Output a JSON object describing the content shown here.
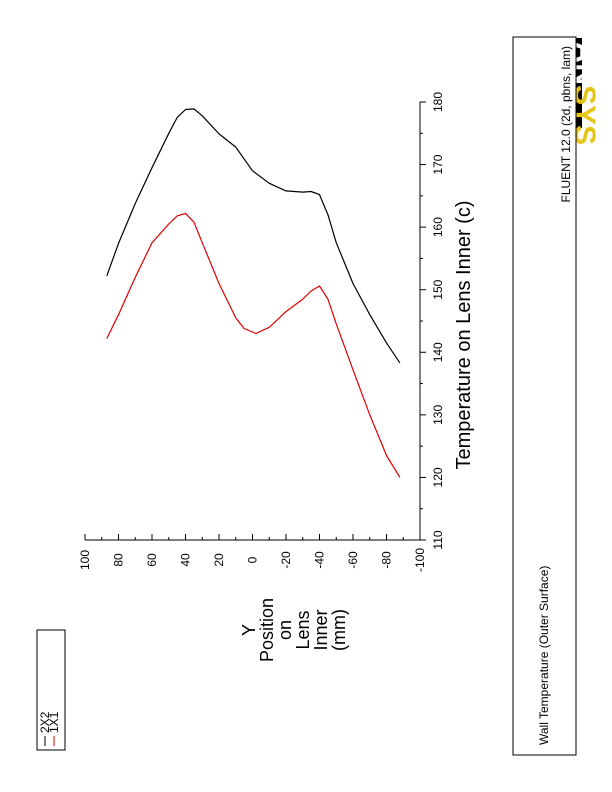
{
  "logo": {
    "text_a": "AN",
    "text_b": "SYS",
    "accent_color": "#e8c619"
  },
  "legend": {
    "entries": [
      {
        "label": "2X2",
        "color": "#000000"
      },
      {
        "label": "1X1",
        "color": "#e00000"
      }
    ]
  },
  "footer": {
    "left_text": "Wall Temperature (Outer Surface)",
    "right_text": "FLUENT 12.0 (2d, pbns, lam)"
  },
  "chart_data": {
    "type": "line",
    "orientation": "rotated 90 degrees counter-clockwise",
    "xlabel": "Temperature on Lens Inner (c)",
    "ylabel_lines": [
      "Y",
      "Position",
      "on",
      "Lens",
      "Inner",
      "(mm)"
    ],
    "xlim": [
      110,
      180
    ],
    "ylim": [
      -100,
      100
    ],
    "x_ticks": [
      "110",
      "120",
      "130",
      "140",
      "150",
      "160",
      "170",
      "180"
    ],
    "y_ticks": [
      "100",
      "80",
      "60",
      "40",
      "20",
      "0",
      "-20",
      "-40",
      "-60",
      "-80",
      "-100"
    ],
    "series": [
      {
        "name": "2X2",
        "color": "#000000",
        "points": [
          [
            -88,
            138.3
          ],
          [
            -80,
            141.5
          ],
          [
            -70,
            146.0
          ],
          [
            -60,
            151.0
          ],
          [
            -50,
            157.5
          ],
          [
            -45,
            162.0
          ],
          [
            -40,
            165.2
          ],
          [
            -35,
            165.7
          ],
          [
            -30,
            165.6
          ],
          [
            -20,
            165.8
          ],
          [
            -10,
            167.0
          ],
          [
            0,
            169.0
          ],
          [
            10,
            172.8
          ],
          [
            20,
            174.9
          ],
          [
            30,
            177.8
          ],
          [
            35,
            178.9
          ],
          [
            40,
            178.8
          ],
          [
            45,
            177.5
          ],
          [
            50,
            175.0
          ],
          [
            60,
            169.5
          ],
          [
            70,
            163.8
          ],
          [
            80,
            157.4
          ],
          [
            87,
            152.2
          ]
        ]
      },
      {
        "name": "1X1",
        "color": "#e00000",
        "points": [
          [
            -88,
            120.0
          ],
          [
            -80,
            123.5
          ],
          [
            -70,
            130.0
          ],
          [
            -60,
            137.2
          ],
          [
            -50,
            144.5
          ],
          [
            -45,
            148.5
          ],
          [
            -40,
            150.6
          ],
          [
            -35,
            149.8
          ],
          [
            -30,
            148.5
          ],
          [
            -20,
            146.5
          ],
          [
            -10,
            144.0
          ],
          [
            -2,
            143.0
          ],
          [
            5,
            143.8
          ],
          [
            10,
            145.5
          ],
          [
            20,
            151.0
          ],
          [
            30,
            157.5
          ],
          [
            35,
            160.8
          ],
          [
            40,
            162.2
          ],
          [
            45,
            161.8
          ],
          [
            50,
            160.5
          ],
          [
            60,
            157.5
          ],
          [
            70,
            152.0
          ],
          [
            80,
            146.0
          ],
          [
            87,
            142.2
          ]
        ]
      }
    ]
  }
}
